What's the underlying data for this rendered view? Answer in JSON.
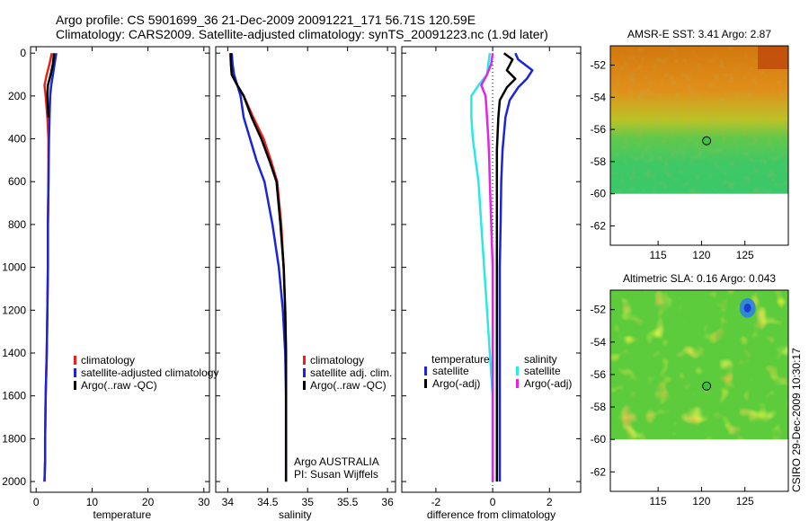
{
  "header": {
    "line1": "Argo profile: CS 5901699_36 21-Dec-2009 20091221_171 56.71S 120.59E",
    "line2": "Climatology: CARS2009. Satellite-adjusted climatology: synTS_20091223.nc (1.9d later)"
  },
  "credit": "CSIRO 29-Dec-2009 10:30:17",
  "colors": {
    "red": "#e8221a",
    "blue": "#1a26d6",
    "black": "#000000",
    "cyan": "#28e8ea",
    "magenta": "#e622e6"
  },
  "chart_data": [
    {
      "type": "line",
      "id": "temperature",
      "xlabel": "temperature",
      "ylabel": "",
      "xlim": [
        -1,
        31
      ],
      "ylim": [
        2050,
        -30
      ],
      "xticks": [
        0,
        10,
        20,
        30
      ],
      "yticks": [
        0,
        200,
        400,
        600,
        800,
        1000,
        1200,
        1400,
        1600,
        1800,
        2000
      ],
      "legend_items": [
        "climatology",
        "satellite-adjusted climatology",
        "Argo(..raw -QC)"
      ],
      "series": [
        {
          "name": "climatology",
          "color": "red",
          "x": [
            2.8,
            2.4,
            1.9,
            1.5,
            1.7,
            2.0,
            2.2,
            2.2,
            2.1,
            2.1,
            2.0,
            1.9,
            1.8,
            1.7,
            1.6,
            1.6,
            1.5
          ],
          "y": [
            0,
            50,
            100,
            150,
            200,
            300,
            400,
            600,
            800,
            1000,
            1200,
            1400,
            1500,
            1600,
            1800,
            1900,
            2000
          ]
        },
        {
          "name": "satellite-adjusted climatology",
          "color": "blue",
          "x": [
            3.6,
            3.3,
            3.0,
            2.7,
            2.5,
            2.4,
            2.3,
            2.2,
            2.1,
            2.1,
            2.0,
            1.9,
            1.8,
            1.7,
            1.6,
            1.6,
            1.5
          ],
          "y": [
            0,
            50,
            100,
            150,
            200,
            300,
            400,
            600,
            800,
            1000,
            1200,
            1400,
            1500,
            1600,
            1800,
            1900,
            2000
          ]
        },
        {
          "name": "Argo(..raw -QC)",
          "color": "black",
          "x": [
            3.2,
            3.0,
            2.6,
            2.1,
            2.0,
            2.1,
            2.2
          ],
          "y": [
            0,
            50,
            100,
            150,
            200,
            250,
            300
          ]
        }
      ]
    },
    {
      "type": "line",
      "id": "salinity",
      "xlabel": "salinity",
      "ylabel": "",
      "xlim": [
        33.85,
        36.1
      ],
      "ylim": [
        2050,
        -30
      ],
      "xticks": [
        34,
        34.5,
        35,
        35.5,
        36
      ],
      "yticks": [
        0,
        200,
        400,
        600,
        800,
        1000,
        1200,
        1400,
        1600,
        1800,
        2000
      ],
      "legend_items": [
        "climatology",
        "satellite adj. clim.",
        "Argo(..raw -QC)"
      ],
      "annotations": [
        "Argo AUSTRALIA",
        "PI: Susan Wijffels"
      ],
      "series": [
        {
          "name": "climatology",
          "color": "red",
          "x": [
            34.03,
            34.04,
            34.05,
            34.12,
            34.2,
            34.32,
            34.45,
            34.54,
            34.62,
            34.67,
            34.7,
            34.72,
            34.73,
            34.73,
            34.73
          ],
          "y": [
            0,
            50,
            100,
            150,
            200,
            300,
            400,
            500,
            600,
            800,
            1000,
            1200,
            1400,
            1600,
            2000
          ]
        },
        {
          "name": "satellite adj. clim.",
          "color": "blue",
          "x": [
            34.05,
            34.06,
            34.08,
            34.12,
            34.16,
            34.2,
            34.28,
            34.36,
            34.46,
            34.56,
            34.64,
            34.69,
            34.72,
            34.73,
            34.73
          ],
          "y": [
            0,
            50,
            100,
            150,
            200,
            300,
            400,
            500,
            600,
            800,
            1000,
            1200,
            1400,
            1600,
            2000
          ]
        },
        {
          "name": "Argo(..raw -QC)",
          "color": "black",
          "x": [
            34.04,
            34.04,
            34.05,
            34.12,
            34.2,
            34.3,
            34.42,
            34.52,
            34.61,
            34.66,
            34.7,
            34.72,
            34.73,
            34.73,
            34.73
          ],
          "y": [
            0,
            50,
            100,
            150,
            200,
            300,
            400,
            500,
            600,
            800,
            1000,
            1200,
            1400,
            1600,
            2000
          ]
        }
      ]
    },
    {
      "type": "line",
      "id": "difference",
      "xlabel": "difference from climatology",
      "ylabel": "",
      "xlim": [
        -3.2,
        3.1
      ],
      "ylim": [
        2050,
        -30
      ],
      "xticks": [
        -2,
        0,
        2
      ],
      "yticks": [
        0,
        200,
        400,
        600,
        800,
        1000,
        1200,
        1400,
        1600,
        1800,
        2000
      ],
      "legend_title_left": "temperature",
      "legend_title_right": "salinity",
      "legend_items_left": [
        "satellite",
        "Argo(-adj)"
      ],
      "legend_items_right": [
        "satellite",
        "Argo(-adj)"
      ],
      "series": [
        {
          "name": "temperature satellite",
          "color": "blue",
          "x": [
            0.8,
            0.9,
            1.4,
            1.2,
            0.9,
            0.6,
            0.45,
            0.35,
            0.3,
            0.28,
            0.25,
            0.25,
            0.25,
            0.25,
            0.25
          ],
          "y": [
            0,
            30,
            80,
            120,
            160,
            220,
            300,
            450,
            600,
            800,
            1000,
            1200,
            1500,
            1800,
            2000
          ]
        },
        {
          "name": "temperature Argo(-adj)",
          "color": "black",
          "x": [
            0.4,
            0.7,
            0.5,
            0.8,
            0.5,
            0.25,
            0.2,
            0.15,
            0.15,
            0.15,
            0.15,
            0.15,
            0.15,
            0.15,
            0.15
          ],
          "y": [
            0,
            30,
            80,
            120,
            160,
            220,
            300,
            450,
            600,
            800,
            1000,
            1200,
            1500,
            1800,
            2000
          ]
        },
        {
          "name": "salinity satellite",
          "color": "cyan",
          "x": [
            -0.1,
            -0.15,
            -0.2,
            -0.5,
            -0.75,
            -0.75,
            -0.7,
            -0.6,
            -0.5,
            -0.4,
            -0.3,
            -0.2,
            -0.1,
            0.0,
            0.0
          ],
          "y": [
            0,
            50,
            100,
            150,
            200,
            300,
            400,
            500,
            600,
            800,
            1000,
            1200,
            1400,
            1600,
            2000
          ]
        },
        {
          "name": "salinity Argo(-adj)",
          "color": "magenta",
          "x": [
            0.0,
            -0.05,
            -0.2,
            -0.4,
            -0.25,
            -0.2,
            -0.15,
            -0.12,
            -0.1,
            -0.05,
            0.0,
            0.0,
            0.0,
            0.0,
            0.0
          ],
          "y": [
            0,
            50,
            100,
            150,
            200,
            300,
            400,
            500,
            600,
            800,
            1000,
            1200,
            1400,
            1600,
            2000
          ]
        }
      ]
    },
    {
      "type": "heatmap",
      "id": "sst_map",
      "title": "AMSR-E SST: 3.41  Argo: 2.87",
      "xlim": [
        109.5,
        130
      ],
      "ylim": [
        -63.2,
        -50.8
      ],
      "data_lat_min": -60,
      "xticks": [
        115,
        120,
        125
      ],
      "yticks": [
        -52,
        -54,
        -56,
        -58,
        -60,
        -62
      ],
      "marker": {
        "lon": 120.59,
        "lat": -56.71
      }
    },
    {
      "type": "heatmap",
      "id": "sla_map",
      "title": "Altimetric SLA: 0.16  Argo: 0.043",
      "xlim": [
        109.5,
        130
      ],
      "ylim": [
        -63.2,
        -50.8
      ],
      "data_lat_min": -60,
      "xticks": [
        115,
        120,
        125
      ],
      "yticks": [
        -52,
        -54,
        -56,
        -58,
        -60,
        -62
      ],
      "marker": {
        "lon": 120.59,
        "lat": -56.71
      }
    }
  ]
}
